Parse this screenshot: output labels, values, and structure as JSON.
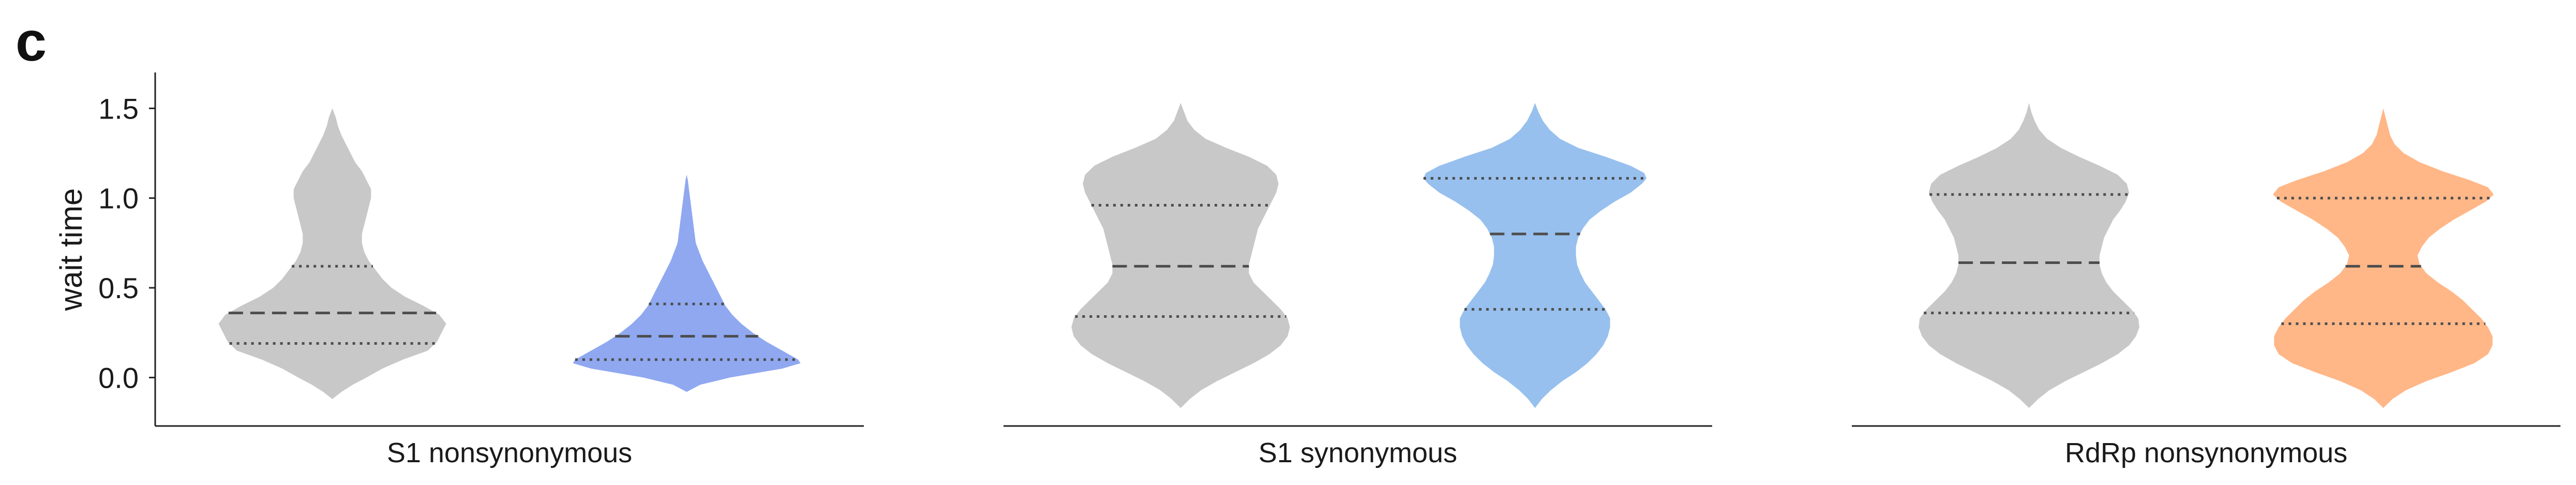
{
  "panel_label": "c",
  "colors": {
    "reference": "#c8c8c8",
    "S1 nonsynonymous": "#8fa8f0",
    "S1 synonymous": "#97c0ee",
    "RdRp nonsynonymous": "#ffb788",
    "quartile_line": "#4d4d4d"
  },
  "chart_data": [
    {
      "type": "violin",
      "xlabel": "S1 nonsynonymous",
      "ylabel": "wait time",
      "ylim": [
        -0.27,
        1.7
      ],
      "yticks": [
        0.0,
        0.5,
        1.0,
        1.5
      ],
      "ytick_labels": [
        "0.0",
        "0.5",
        "1.0",
        "1.5"
      ],
      "violins": [
        {
          "color": "#c8c8c8",
          "quartiles": {
            "q1": 0.19,
            "median": 0.36,
            "q3": 0.62
          },
          "density": [
            [
              -0.12,
              0.0
            ],
            [
              -0.08,
              0.08
            ],
            [
              -0.04,
              0.18
            ],
            [
              0.0,
              0.3
            ],
            [
              0.05,
              0.44
            ],
            [
              0.1,
              0.62
            ],
            [
              0.15,
              0.84
            ],
            [
              0.2,
              0.92
            ],
            [
              0.25,
              0.96
            ],
            [
              0.3,
              1.0
            ],
            [
              0.35,
              0.94
            ],
            [
              0.4,
              0.8
            ],
            [
              0.45,
              0.64
            ],
            [
              0.5,
              0.52
            ],
            [
              0.55,
              0.44
            ],
            [
              0.6,
              0.38
            ],
            [
              0.65,
              0.32
            ],
            [
              0.7,
              0.28
            ],
            [
              0.75,
              0.26
            ],
            [
              0.8,
              0.26
            ],
            [
              0.85,
              0.28
            ],
            [
              0.9,
              0.3
            ],
            [
              0.95,
              0.32
            ],
            [
              1.0,
              0.34
            ],
            [
              1.05,
              0.34
            ],
            [
              1.1,
              0.3
            ],
            [
              1.15,
              0.26
            ],
            [
              1.2,
              0.2
            ],
            [
              1.25,
              0.16
            ],
            [
              1.3,
              0.12
            ],
            [
              1.35,
              0.08
            ],
            [
              1.4,
              0.05
            ],
            [
              1.45,
              0.03
            ],
            [
              1.5,
              0.0
            ]
          ]
        },
        {
          "color": "#8fa8f0",
          "quartiles": {
            "q1": 0.1,
            "median": 0.23,
            "q3": 0.41
          },
          "density": [
            [
              -0.08,
              0.0
            ],
            [
              -0.04,
              0.12
            ],
            [
              0.0,
              0.38
            ],
            [
              0.05,
              0.84
            ],
            [
              0.08,
              1.0
            ],
            [
              0.1,
              0.98
            ],
            [
              0.15,
              0.84
            ],
            [
              0.2,
              0.7
            ],
            [
              0.25,
              0.58
            ],
            [
              0.3,
              0.48
            ],
            [
              0.35,
              0.4
            ],
            [
              0.4,
              0.34
            ],
            [
              0.45,
              0.3
            ],
            [
              0.5,
              0.26
            ],
            [
              0.55,
              0.22
            ],
            [
              0.6,
              0.18
            ],
            [
              0.65,
              0.14
            ],
            [
              0.7,
              0.11
            ],
            [
              0.75,
              0.08
            ],
            [
              0.8,
              0.07
            ],
            [
              0.85,
              0.06
            ],
            [
              0.9,
              0.05
            ],
            [
              0.95,
              0.04
            ],
            [
              1.0,
              0.03
            ],
            [
              1.05,
              0.02
            ],
            [
              1.1,
              0.01
            ],
            [
              1.13,
              0.0
            ]
          ]
        }
      ]
    },
    {
      "type": "violin",
      "xlabel": "S1 synonymous",
      "ylim": [
        -0.27,
        1.7
      ],
      "violins": [
        {
          "color": "#c8c8c8",
          "quartiles": {
            "q1": 0.34,
            "median": 0.62,
            "q3": 0.96
          },
          "density": [
            [
              -0.17,
              0.0
            ],
            [
              -0.12,
              0.08
            ],
            [
              -0.07,
              0.18
            ],
            [
              -0.02,
              0.32
            ],
            [
              0.03,
              0.48
            ],
            [
              0.08,
              0.64
            ],
            [
              0.13,
              0.78
            ],
            [
              0.18,
              0.88
            ],
            [
              0.23,
              0.94
            ],
            [
              0.28,
              0.96
            ],
            [
              0.33,
              0.94
            ],
            [
              0.38,
              0.88
            ],
            [
              0.43,
              0.8
            ],
            [
              0.48,
              0.72
            ],
            [
              0.53,
              0.64
            ],
            [
              0.58,
              0.6
            ],
            [
              0.63,
              0.6
            ],
            [
              0.68,
              0.62
            ],
            [
              0.73,
              0.64
            ],
            [
              0.78,
              0.66
            ],
            [
              0.83,
              0.68
            ],
            [
              0.88,
              0.72
            ],
            [
              0.93,
              0.76
            ],
            [
              0.98,
              0.8
            ],
            [
              1.03,
              0.84
            ],
            [
              1.08,
              0.86
            ],
            [
              1.13,
              0.84
            ],
            [
              1.18,
              0.76
            ],
            [
              1.23,
              0.6
            ],
            [
              1.28,
              0.4
            ],
            [
              1.33,
              0.22
            ],
            [
              1.38,
              0.12
            ],
            [
              1.43,
              0.06
            ],
            [
              1.48,
              0.03
            ],
            [
              1.53,
              0.0
            ]
          ]
        },
        {
          "color": "#97c0ee",
          "quartiles": {
            "q1": 0.38,
            "median": 0.8,
            "q3": 1.11
          },
          "density": [
            [
              -0.17,
              0.0
            ],
            [
              -0.12,
              0.06
            ],
            [
              -0.07,
              0.14
            ],
            [
              -0.02,
              0.24
            ],
            [
              0.03,
              0.36
            ],
            [
              0.08,
              0.46
            ],
            [
              0.13,
              0.54
            ],
            [
              0.18,
              0.6
            ],
            [
              0.23,
              0.64
            ],
            [
              0.28,
              0.66
            ],
            [
              0.33,
              0.66
            ],
            [
              0.38,
              0.62
            ],
            [
              0.43,
              0.56
            ],
            [
              0.48,
              0.5
            ],
            [
              0.53,
              0.44
            ],
            [
              0.58,
              0.4
            ],
            [
              0.63,
              0.37
            ],
            [
              0.68,
              0.36
            ],
            [
              0.73,
              0.36
            ],
            [
              0.78,
              0.38
            ],
            [
              0.83,
              0.42
            ],
            [
              0.88,
              0.48
            ],
            [
              0.93,
              0.58
            ],
            [
              0.98,
              0.7
            ],
            [
              1.03,
              0.84
            ],
            [
              1.08,
              0.94
            ],
            [
              1.11,
              0.98
            ],
            [
              1.14,
              0.96
            ],
            [
              1.18,
              0.84
            ],
            [
              1.23,
              0.62
            ],
            [
              1.28,
              0.38
            ],
            [
              1.33,
              0.22
            ],
            [
              1.38,
              0.13
            ],
            [
              1.43,
              0.07
            ],
            [
              1.48,
              0.03
            ],
            [
              1.53,
              0.0
            ]
          ]
        }
      ]
    },
    {
      "type": "violin",
      "xlabel": "RdRp nonsynonymous",
      "ylim": [
        -0.27,
        1.7
      ],
      "violins": [
        {
          "color": "#c8c8c8",
          "quartiles": {
            "q1": 0.36,
            "median": 0.64,
            "q3": 1.02
          },
          "density": [
            [
              -0.17,
              0.0
            ],
            [
              -0.12,
              0.08
            ],
            [
              -0.07,
              0.18
            ],
            [
              -0.02,
              0.32
            ],
            [
              0.03,
              0.48
            ],
            [
              0.08,
              0.64
            ],
            [
              0.13,
              0.78
            ],
            [
              0.18,
              0.88
            ],
            [
              0.23,
              0.94
            ],
            [
              0.28,
              0.97
            ],
            [
              0.33,
              0.96
            ],
            [
              0.38,
              0.9
            ],
            [
              0.43,
              0.82
            ],
            [
              0.48,
              0.74
            ],
            [
              0.53,
              0.68
            ],
            [
              0.58,
              0.64
            ],
            [
              0.63,
              0.62
            ],
            [
              0.68,
              0.62
            ],
            [
              0.73,
              0.64
            ],
            [
              0.78,
              0.66
            ],
            [
              0.83,
              0.7
            ],
            [
              0.88,
              0.74
            ],
            [
              0.93,
              0.8
            ],
            [
              0.98,
              0.85
            ],
            [
              1.03,
              0.88
            ],
            [
              1.08,
              0.86
            ],
            [
              1.13,
              0.78
            ],
            [
              1.18,
              0.62
            ],
            [
              1.23,
              0.44
            ],
            [
              1.28,
              0.28
            ],
            [
              1.33,
              0.16
            ],
            [
              1.38,
              0.09
            ],
            [
              1.43,
              0.05
            ],
            [
              1.48,
              0.02
            ],
            [
              1.53,
              0.0
            ]
          ]
        },
        {
          "color": "#ffb788",
          "quartiles": {
            "q1": 0.3,
            "median": 0.62,
            "q3": 1.0
          },
          "density": [
            [
              -0.17,
              0.0
            ],
            [
              -0.12,
              0.08
            ],
            [
              -0.07,
              0.2
            ],
            [
              -0.02,
              0.38
            ],
            [
              0.03,
              0.6
            ],
            [
              0.08,
              0.8
            ],
            [
              0.13,
              0.92
            ],
            [
              0.18,
              0.96
            ],
            [
              0.23,
              0.96
            ],
            [
              0.28,
              0.92
            ],
            [
              0.33,
              0.86
            ],
            [
              0.38,
              0.78
            ],
            [
              0.43,
              0.7
            ],
            [
              0.48,
              0.6
            ],
            [
              0.53,
              0.48
            ],
            [
              0.58,
              0.38
            ],
            [
              0.63,
              0.32
            ],
            [
              0.68,
              0.3
            ],
            [
              0.73,
              0.34
            ],
            [
              0.78,
              0.4
            ],
            [
              0.83,
              0.5
            ],
            [
              0.88,
              0.62
            ],
            [
              0.93,
              0.76
            ],
            [
              0.98,
              0.9
            ],
            [
              1.02,
              0.97
            ],
            [
              1.06,
              0.92
            ],
            [
              1.1,
              0.76
            ],
            [
              1.15,
              0.52
            ],
            [
              1.2,
              0.32
            ],
            [
              1.25,
              0.18
            ],
            [
              1.3,
              0.1
            ],
            [
              1.35,
              0.06
            ],
            [
              1.4,
              0.04
            ],
            [
              1.45,
              0.02
            ],
            [
              1.5,
              0.0
            ]
          ]
        }
      ]
    }
  ]
}
